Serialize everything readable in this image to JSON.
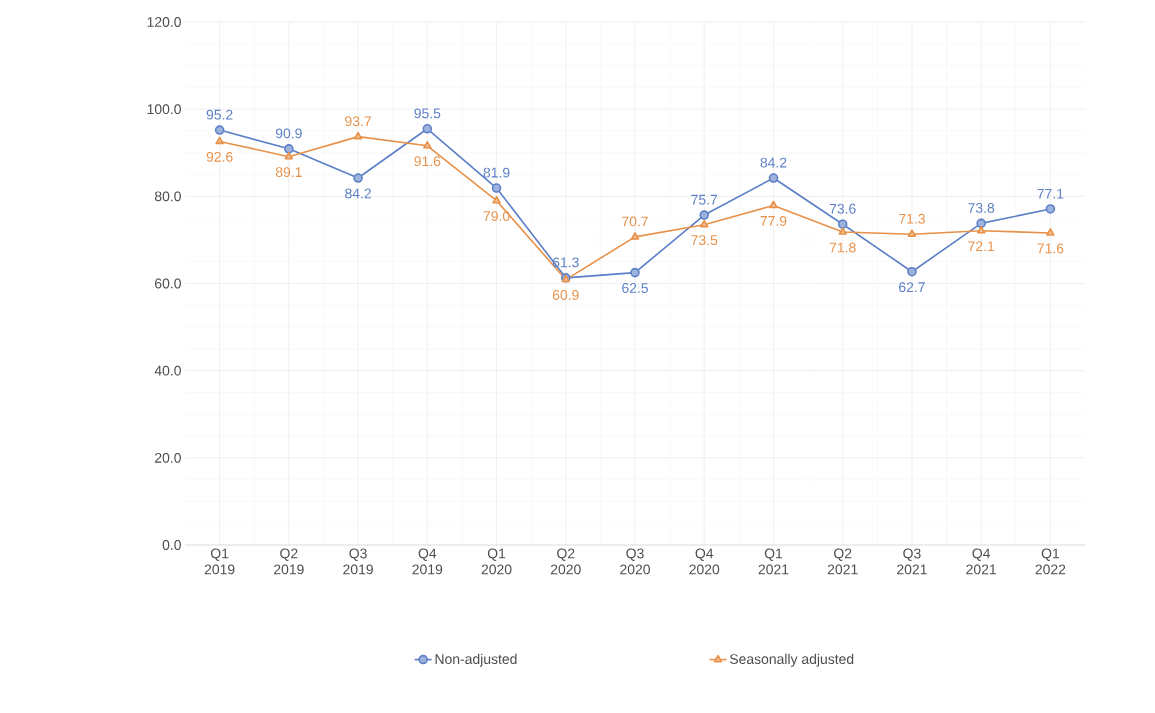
{
  "chart_data": {
    "type": "line",
    "categories": [
      "Q1 2019",
      "Q2 2019",
      "Q3 2019",
      "Q4 2019",
      "Q1 2020",
      "Q2 2020",
      "Q3 2020",
      "Q4 2020",
      "Q1 2021",
      "Q2 2021",
      "Q3 2021",
      "Q4 2021",
      "Q1 2022"
    ],
    "series": [
      {
        "name": "Non-adjusted",
        "color": "#5b7fc7",
        "marker": "circle",
        "values": [
          95.2,
          90.9,
          84.2,
          95.5,
          81.9,
          61.3,
          62.5,
          75.7,
          84.2,
          73.6,
          62.7,
          73.8,
          77.1
        ],
        "value_labels": [
          "95.2",
          "90.9",
          "84.2",
          "95.5",
          "81.9",
          "61.3",
          "62.5",
          "75.7",
          "84.2",
          "73.6",
          "62.7",
          "73.8",
          "77.1"
        ]
      },
      {
        "name": "Seasonally adjusted",
        "color": "#e8914a",
        "marker": "triangle",
        "values": [
          92.6,
          89.1,
          93.7,
          91.6,
          79.0,
          60.9,
          70.7,
          73.5,
          77.9,
          71.8,
          71.3,
          72.1,
          71.6
        ],
        "value_labels": [
          "92.6",
          "89.1",
          "93.7",
          "91.6",
          "79.0",
          "60.9",
          "70.7",
          "73.5",
          "77.9",
          "71.8",
          "71.3",
          "72.1",
          "71.6"
        ]
      }
    ],
    "ylim": [
      0,
      120
    ],
    "yticks": [
      {
        "value": 0,
        "label": "0.0"
      },
      {
        "value": 20,
        "label": "20.0"
      },
      {
        "value": 40,
        "label": "40.0"
      },
      {
        "value": 60,
        "label": "60.0"
      },
      {
        "value": 80,
        "label": "80.0"
      },
      {
        "value": 100,
        "label": "100.0"
      },
      {
        "value": 120,
        "label": "120.0"
      }
    ],
    "grid": true,
    "legend": "bottom"
  }
}
